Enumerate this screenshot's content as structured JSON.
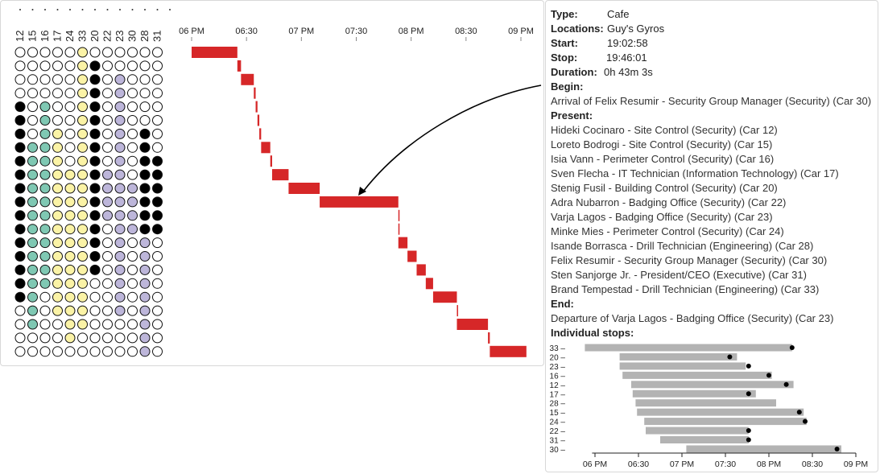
{
  "time_axis": {
    "ticks": [
      "06 PM",
      "06:30",
      "07 PM",
      "07:30",
      "08 PM",
      "08:30",
      "09 PM"
    ]
  },
  "columns": [
    "12",
    "15",
    "16",
    "17",
    "24",
    "33",
    "20",
    "22",
    "23",
    "30",
    "28",
    "31"
  ],
  "colors": {
    "bar": "#d62728",
    "teal": "#7fc8b3",
    "yellow": "#fbf3a6",
    "purple": "#bdb6da",
    "black": "#000000",
    "empty": "#ffffff",
    "stop_bar": "#b3b3b3"
  },
  "chart_data": [
    {
      "type": "gantt",
      "x_unit": "minutes after 6 PM",
      "xlim": [
        0,
        182
      ],
      "row_states_legend": "W=empty, T=teal, Y=yellow, P=purple, B=black",
      "rows": [
        {
          "states": "WWWWWYWWWWWW",
          "start": 0,
          "end": 25
        },
        {
          "states": "WWWWWYBWWWWW",
          "start": 25,
          "end": 27
        },
        {
          "states": "WWWWWYBWPWWW",
          "start": 27,
          "end": 34
        },
        {
          "states": "WWWWWYBWPWWW",
          "start": 34,
          "end": 35
        },
        {
          "states": "BWTWWYBWPWWW",
          "start": 35,
          "end": 36
        },
        {
          "states": "BWTWWYBWPWWW",
          "start": 36,
          "end": 37
        },
        {
          "states": "BWTYWYBWPWBW",
          "start": 37,
          "end": 38
        },
        {
          "states": "BTTYWYBWPWBW",
          "start": 38,
          "end": 43
        },
        {
          "states": "BTTYWYBWPWBB",
          "start": 43,
          "end": 44
        },
        {
          "states": "BTTYYYBPPWBB",
          "start": 44,
          "end": 53
        },
        {
          "states": "BTTYYYBPPPBB",
          "start": 53,
          "end": 70
        },
        {
          "states": "BTTYYYBPPPBB",
          "start": 70,
          "end": 113
        },
        {
          "states": "BTTYYYBPPPBB",
          "start": 113,
          "end": 113
        },
        {
          "states": "BTTYYYBWPPBB",
          "start": 113,
          "end": 113
        },
        {
          "states": "BTTYYYBWPWPW",
          "start": 113,
          "end": 118
        },
        {
          "states": "BTTYYYBWPWPW",
          "start": 118,
          "end": 123
        },
        {
          "states": "BTTYYYBWPWPW",
          "start": 123,
          "end": 128
        },
        {
          "states": "BTTYYYWWPWPW",
          "start": 128,
          "end": 132
        },
        {
          "states": "BTWYYYWWPWPW",
          "start": 132,
          "end": 145
        },
        {
          "states": "WTWYYYWWPWPW",
          "start": 145,
          "end": 145
        },
        {
          "states": "WTWWYYWWWWPW",
          "start": 145,
          "end": 162
        },
        {
          "states": "WWWWYWWWWWPW",
          "start": 162,
          "end": 163
        },
        {
          "states": "WWWWWWWWWWPW",
          "start": 163,
          "end": 183
        }
      ]
    },
    {
      "type": "bar",
      "orientation": "horizontal",
      "x_unit": "minutes after 6 PM",
      "xlim": [
        -2,
        180
      ],
      "x_ticks": [
        "06 PM",
        "06:30",
        "07 PM",
        "07:30",
        "08 PM",
        "08:30",
        "09 PM"
      ],
      "rows": [
        {
          "label": "33",
          "start": -7,
          "end": 136,
          "dot": 136
        },
        {
          "label": "20",
          "start": 17,
          "end": 98,
          "dot": 93
        },
        {
          "label": "23",
          "start": 17,
          "end": 104,
          "dot": 106
        },
        {
          "label": "16",
          "start": 19,
          "end": 122,
          "dot": 120
        },
        {
          "label": "12",
          "start": 25,
          "end": 137,
          "dot": 132
        },
        {
          "label": "17",
          "start": 26,
          "end": 111,
          "dot": 106
        },
        {
          "label": "28",
          "start": 28,
          "end": 125,
          "dot": null
        },
        {
          "label": "15",
          "start": 29,
          "end": 144,
          "dot": 141
        },
        {
          "label": "24",
          "start": 34,
          "end": 146,
          "dot": 145
        },
        {
          "label": "22",
          "start": 35,
          "end": 106,
          "dot": 106
        },
        {
          "label": "31",
          "start": 45,
          "end": 106,
          "dot": 106
        },
        {
          "label": "30",
          "start": 63,
          "end": 170,
          "dot": 167
        }
      ]
    }
  ],
  "tooltip": {
    "type_label": "Type:",
    "type_value": "Cafe",
    "locations_label": "Locations:",
    "locations_value": "Guy's Gyros",
    "start_label": "Start:",
    "start_value": "19:02:58",
    "stop_label": "Stop:",
    "stop_value": "19:46:01",
    "duration_label": "Duration:",
    "duration_value": "0h 43m 3s",
    "begin_label": "Begin:",
    "begin_value": "Arrival of Felix Resumir - Security Group Manager (Security) (Car 30)",
    "present_label": "Present:",
    "present": [
      "Hideki Cocinaro - Site Control (Security) (Car 12)",
      "Loreto Bodrogi - Site Control (Security) (Car 15)",
      "Isia Vann - Perimeter Control (Security) (Car 16)",
      "Sven Flecha - IT Technician (Information Technology) (Car 17)",
      "Stenig Fusil - Building Control (Security) (Car 20)",
      "Adra Nubarron - Badging Office (Security) (Car 22)",
      "Varja Lagos - Badging Office (Security) (Car 23)",
      "Minke Mies - Perimeter Control (Security) (Car 24)",
      "Isande Borrasca - Drill Technician (Engineering) (Car 28)",
      "Felix Resumir - Security Group Manager (Security) (Car 30)",
      "Sten Sanjorge Jr. - President/CEO (Executive) (Car 31)",
      "Brand Tempestad - Drill Technician (Engineering) (Car 33)"
    ],
    "end_label": "End:",
    "end_value": "Departure of Varja Lagos - Badging Office (Security) (Car 23)",
    "stops_label": "Individual stops:"
  }
}
